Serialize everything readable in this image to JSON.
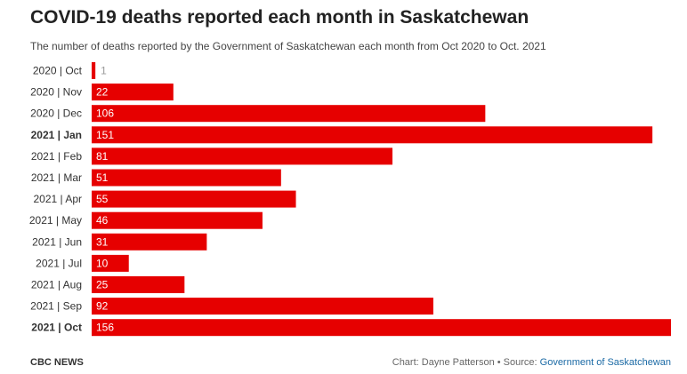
{
  "chart_data": {
    "type": "bar",
    "orientation": "horizontal",
    "title": "COVID-19 deaths reported each month in Saskatchewan",
    "subtitle": "The number of deaths reported by the Government of Saskatchewan each month from Oct 2020 to Oct. 2021",
    "categories": [
      "2020 | Oct",
      "2020 | Nov",
      "2020 | Dec",
      "2021 | Jan",
      "2021 | Feb",
      "2021 | Mar",
      "2021 | Apr",
      "2021 | May",
      "2021 | Jun",
      "2021 | Jul",
      "2021 | Aug",
      "2021 | Sep",
      "2021 | Oct"
    ],
    "bold_categories": [
      "2021 | Jan",
      "2021 | Oct"
    ],
    "values": [
      1,
      22,
      106,
      151,
      81,
      51,
      55,
      46,
      31,
      10,
      25,
      92,
      156
    ],
    "xlim": [
      0,
      156
    ],
    "grid": false,
    "bar_color": "#e60000"
  },
  "footer": {
    "brand": "CBC NEWS",
    "credit": "Chart: Dayne Patterson • Source: ",
    "source_link": "Government of Saskatchewan"
  }
}
